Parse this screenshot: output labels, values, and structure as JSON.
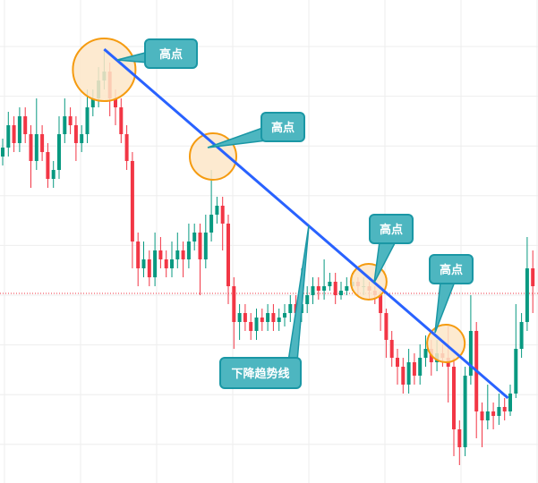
{
  "chart_data": {
    "type": "candlestick",
    "title": "",
    "xlabel": "",
    "ylabel": "",
    "ylim": [
      0,
      108
    ],
    "grid": true,
    "colors": {
      "up": "#089981",
      "down": "#f23645",
      "trendline": "#2962ff",
      "grid": "#eeeeee",
      "current_price_line": "#f23645",
      "highlight_fill": "#fde6c8",
      "highlight_stroke": "#f59b10",
      "callout_fill": "#4db6c0",
      "callout_stroke": "#1a97a5"
    },
    "current_price": 42.4,
    "candles": [
      [
        73,
        77,
        71,
        75
      ],
      [
        75,
        83,
        73,
        80
      ],
      [
        80,
        82,
        74,
        76
      ],
      [
        76,
        84,
        74,
        82
      ],
      [
        82,
        84,
        76,
        78
      ],
      [
        78,
        80,
        66,
        72
      ],
      [
        72,
        86,
        70,
        78
      ],
      [
        78,
        80,
        72,
        74
      ],
      [
        74,
        76,
        66,
        68
      ],
      [
        68,
        72,
        66,
        70
      ],
      [
        70,
        82,
        68,
        78
      ],
      [
        78,
        86,
        76,
        82
      ],
      [
        82,
        84,
        78,
        80
      ],
      [
        80,
        82,
        72,
        76
      ],
      [
        76,
        80,
        74,
        78
      ],
      [
        78,
        88,
        76,
        84
      ],
      [
        84,
        88,
        82,
        86
      ],
      [
        86,
        93,
        84,
        90
      ],
      [
        90,
        97,
        88,
        92
      ],
      [
        92,
        94,
        82,
        86
      ],
      [
        86,
        88,
        80,
        84
      ],
      [
        84,
        86,
        76,
        78
      ],
      [
        78,
        80,
        70,
        72
      ],
      [
        72,
        74,
        48,
        54
      ],
      [
        54,
        56,
        44,
        48
      ],
      [
        48,
        54,
        46,
        50
      ],
      [
        50,
        52,
        44,
        46
      ],
      [
        46,
        56,
        44,
        52
      ],
      [
        52,
        55,
        48,
        50
      ],
      [
        50,
        52,
        46,
        48
      ],
      [
        48,
        54,
        46,
        50
      ],
      [
        50,
        56,
        48,
        52
      ],
      [
        52,
        54,
        46,
        50
      ],
      [
        50,
        58,
        48,
        54
      ],
      [
        54,
        58,
        52,
        56
      ],
      [
        56,
        58,
        42,
        50
      ],
      [
        50,
        60,
        48,
        56
      ],
      [
        56,
        70,
        54,
        60
      ],
      [
        60,
        64,
        58,
        62
      ],
      [
        62,
        64,
        52,
        58
      ],
      [
        58,
        60,
        40,
        44
      ],
      [
        44,
        46,
        30,
        36
      ],
      [
        36,
        40,
        32,
        38
      ],
      [
        38,
        40,
        34,
        36
      ],
      [
        36,
        38,
        32,
        34
      ],
      [
        34,
        39,
        32,
        37
      ],
      [
        37,
        39,
        34,
        36
      ],
      [
        36,
        40,
        34,
        38
      ],
      [
        38,
        40,
        34,
        36
      ],
      [
        36,
        39,
        34,
        37
      ],
      [
        37,
        40,
        35,
        38
      ],
      [
        38,
        42,
        36,
        40
      ],
      [
        40,
        42,
        36,
        38
      ],
      [
        38,
        48,
        36,
        40
      ],
      [
        40,
        44,
        38,
        42
      ],
      [
        42,
        46,
        40,
        44
      ],
      [
        44,
        46,
        41,
        43
      ],
      [
        43,
        50,
        41,
        44
      ],
      [
        44,
        47,
        43,
        45
      ],
      [
        45,
        47,
        40,
        42
      ],
      [
        42,
        45,
        41,
        43
      ],
      [
        43,
        46,
        42,
        44
      ],
      [
        44,
        47,
        43,
        45
      ],
      [
        45,
        46,
        42,
        44
      ],
      [
        44,
        46,
        42,
        44
      ],
      [
        44,
        45,
        41,
        43
      ],
      [
        43,
        44,
        40,
        42
      ],
      [
        42,
        43,
        34,
        38
      ],
      [
        38,
        39,
        28,
        32
      ],
      [
        32,
        34,
        26,
        28
      ],
      [
        28,
        30,
        22,
        26
      ],
      [
        26,
        28,
        20,
        22
      ],
      [
        22,
        30,
        20,
        27
      ],
      [
        27,
        29,
        22,
        24
      ],
      [
        24,
        31,
        22,
        28
      ],
      [
        28,
        33,
        26,
        30
      ],
      [
        30,
        32,
        24,
        27
      ],
      [
        27,
        32,
        25,
        29
      ],
      [
        29,
        31,
        26,
        28
      ],
      [
        28,
        35,
        18,
        26
      ],
      [
        26,
        28,
        6,
        12
      ],
      [
        12,
        14,
        4,
        8
      ],
      [
        8,
        26,
        6,
        24
      ],
      [
        24,
        42,
        22,
        34
      ],
      [
        34,
        36,
        10,
        16
      ],
      [
        16,
        18,
        8,
        14
      ],
      [
        14,
        22,
        12,
        16
      ],
      [
        16,
        18,
        12,
        15
      ],
      [
        15,
        20,
        13,
        17
      ],
      [
        17,
        19,
        14,
        16
      ],
      [
        16,
        22,
        15,
        20
      ],
      [
        20,
        40,
        19,
        30
      ],
      [
        30,
        38,
        28,
        36
      ],
      [
        36,
        55,
        34,
        48
      ],
      [
        48,
        52,
        38,
        44
      ]
    ],
    "trendline": {
      "label": "下降趋势线",
      "from": {
        "index": 18,
        "price": 97
      },
      "to": {
        "index": 89.6,
        "price": 19
      }
    },
    "highlights": [
      {
        "label": "高点",
        "index": 18,
        "price": 92.4
      },
      {
        "label": "高点",
        "index": 37.3,
        "price": 73
      },
      {
        "label": "高点",
        "index": 64.9,
        "price": 45
      },
      {
        "label": "高点",
        "index": 78.6,
        "price": 31.2
      }
    ]
  }
}
